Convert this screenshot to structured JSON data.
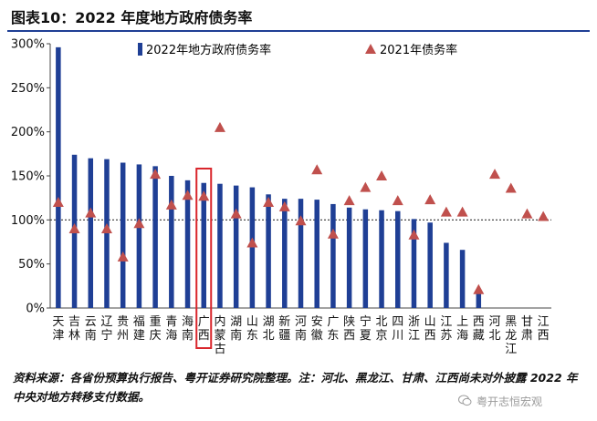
{
  "title": "图表10：2022 年度地方政府债务率",
  "chart_data": {
    "type": "bar",
    "ylim": [
      0,
      300
    ],
    "yticks": [
      "0%",
      "50%",
      "100%",
      "150%",
      "200%",
      "250%",
      "300%"
    ],
    "yticks_values": [
      0,
      50,
      100,
      150,
      200,
      250,
      300
    ],
    "reference_line": 100,
    "legend": [
      "2022年地方政府债务率",
      "2021年债务率"
    ],
    "categories": [
      "天津",
      "吉林",
      "云南",
      "辽宁",
      "贵州",
      "福建",
      "重庆",
      "青海",
      "海南",
      "广西",
      "内蒙古",
      "湖南",
      "山东",
      "湖北",
      "新疆",
      "河南",
      "安徽",
      "广东",
      "陕西",
      "宁夏",
      "北京",
      "四川",
      "浙江",
      "山西",
      "江苏",
      "上海",
      "西藏",
      "河北",
      "黑龙江",
      "甘肃",
      "江西"
    ],
    "series": [
      {
        "name": "2022年地方政府债务率",
        "type": "bar",
        "color": "#1f3f95",
        "values": [
          296,
          174,
          170,
          169,
          165,
          163,
          161,
          150,
          145,
          142,
          141,
          139,
          137,
          129,
          124,
          124,
          123,
          118,
          114,
          112,
          111,
          110,
          101,
          97,
          74,
          66,
          20,
          null,
          null,
          null,
          null
        ]
      },
      {
        "name": "2021年债务率",
        "type": "marker",
        "color": "#c0504d",
        "values": [
          120,
          90,
          108,
          90,
          58,
          96,
          152,
          117,
          128,
          127,
          205,
          107,
          74,
          120,
          115,
          99,
          157,
          84,
          122,
          137,
          150,
          122,
          83,
          123,
          109,
          109,
          21,
          152,
          136,
          107,
          104
        ]
      }
    ],
    "highlight_category": "广西"
  },
  "source": "资料来源：各省份预算执行报告、粤开证券研究院整理。注：河北、黑龙江、甘肃、江西尚未对外披露 2022 年中央对地方转移支付数据。",
  "watermark": "粤开志恒宏观"
}
